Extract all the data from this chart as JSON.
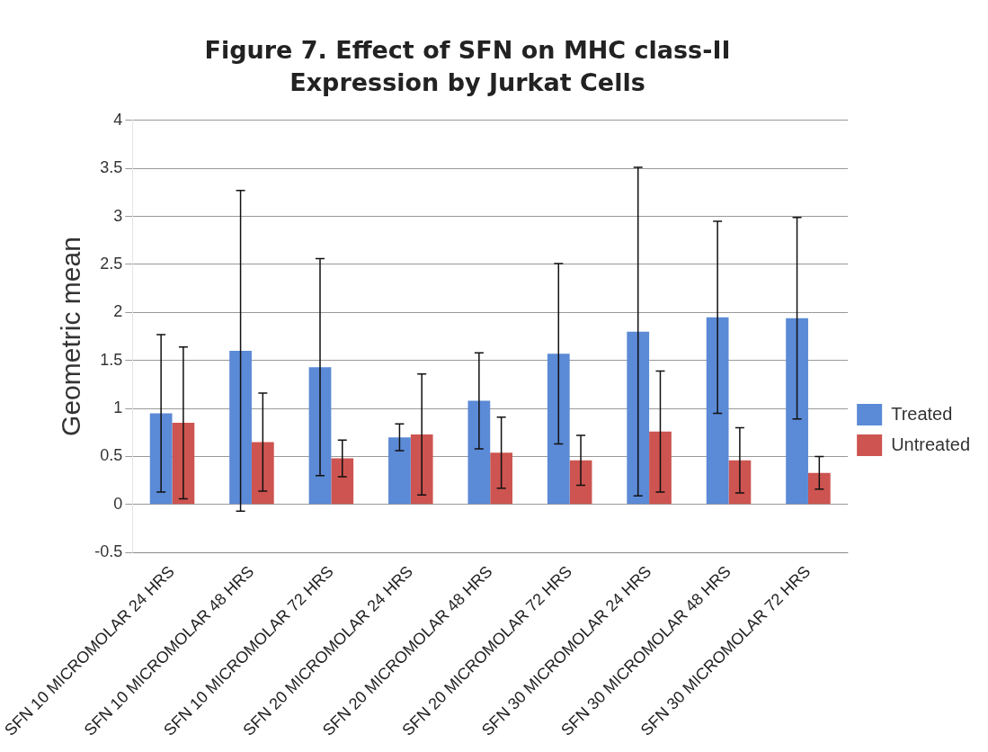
{
  "chart_data": {
    "type": "bar",
    "title": "Figure 7. Effect of SFN on MHC class-II Expression by Jurkat Cells",
    "ylabel": "Geometric mean",
    "categories": [
      "SFN 10 MICROMOLAR 24 HRS",
      "SFN 10 MICROMOLAR 48 HRS",
      "SFN 10 MICROMOLAR 72 HRS",
      "SFN 20 MICROMOLAR 24 HRS",
      "SFN 20 MICROMOLAR 48 HRS",
      "SFN 20 MICROMOLAR 72 HRS",
      "SFN 30 MICROMOLAR 24 HRS",
      "SFN 30 MICROMOLAR 48 HRS",
      "SFN 30 MICROMOLAR 72 HRS"
    ],
    "series": [
      {
        "name": "Treated",
        "color": "#5b8ad6",
        "values": [
          0.95,
          1.6,
          1.43,
          0.7,
          1.08,
          1.57,
          1.8,
          1.95,
          1.94
        ],
        "errors": [
          0.82,
          1.67,
          1.13,
          0.14,
          0.5,
          0.94,
          1.71,
          1.0,
          1.05
        ]
      },
      {
        "name": "Untreated",
        "color": "#cd5450",
        "values": [
          0.85,
          0.65,
          0.48,
          0.73,
          0.54,
          0.46,
          0.76,
          0.46,
          0.33
        ],
        "errors": [
          0.79,
          0.51,
          0.19,
          0.63,
          0.37,
          0.26,
          0.63,
          0.34,
          0.17
        ]
      }
    ],
    "ylim": [
      -0.5,
      4
    ],
    "yticks": [
      -0.5,
      0,
      0.5,
      1,
      1.5,
      2,
      2.5,
      3,
      3.5,
      4
    ],
    "grid": "y",
    "legend": "right"
  }
}
